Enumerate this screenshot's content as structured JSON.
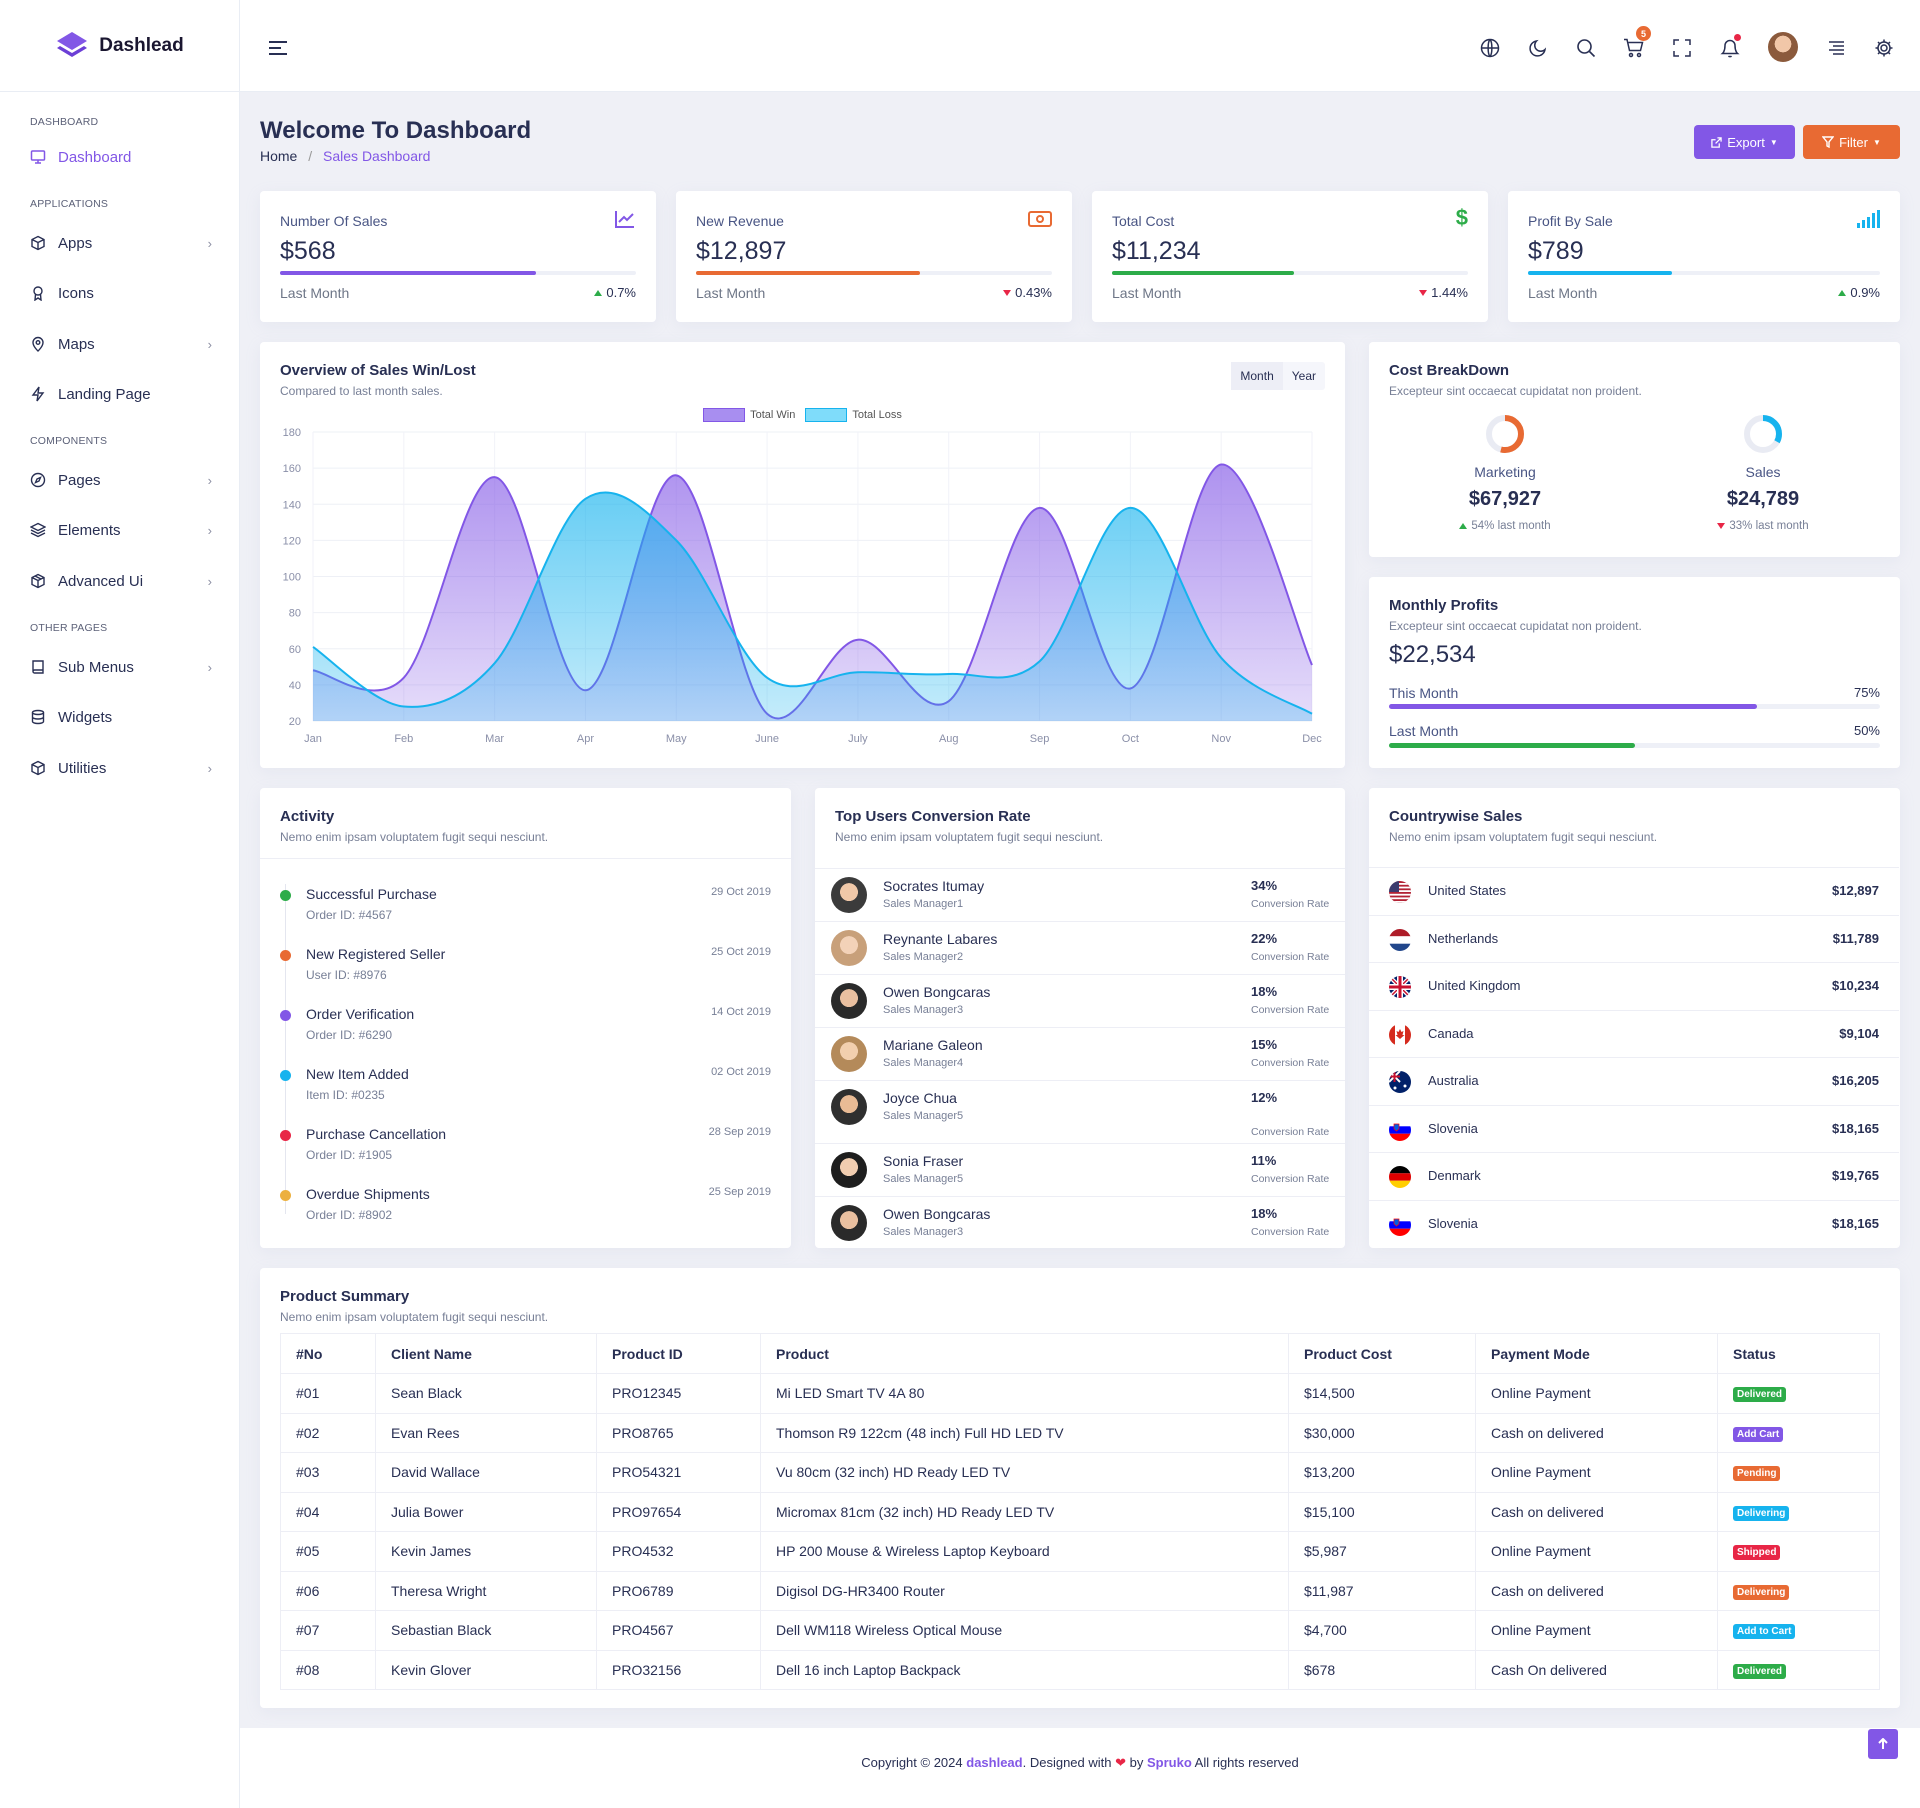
{
  "app": {
    "name": "Dashlead"
  },
  "header": {
    "cart_count": "5"
  },
  "sidebar": {
    "categories": [
      "DASHBOARD",
      "APPLICATIONS",
      "COMPONENTS",
      "OTHER PAGES"
    ],
    "items": [
      {
        "label": "Dashboard"
      },
      {
        "label": "Apps"
      },
      {
        "label": "Icons"
      },
      {
        "label": "Maps"
      },
      {
        "label": "Landing Page"
      },
      {
        "label": "Pages"
      },
      {
        "label": "Elements"
      },
      {
        "label": "Advanced Ui"
      },
      {
        "label": "Sub Menus"
      },
      {
        "label": "Widgets"
      },
      {
        "label": "Utilities"
      }
    ]
  },
  "page": {
    "title": "Welcome To Dashboard",
    "breadcrumb": [
      "Home",
      "Sales Dashboard"
    ],
    "export_label": "Export",
    "filter_label": "Filter"
  },
  "stats": [
    {
      "label": "Number Of Sales",
      "value": "$568",
      "foot": "Last Month",
      "pct": "0.7%",
      "dir": "up",
      "progress": 0.72,
      "color": "#8257e6"
    },
    {
      "label": "New Revenue",
      "value": "$12,897",
      "foot": "Last Month",
      "pct": "0.43%",
      "dir": "down",
      "progress": 0.63,
      "color": "#e86a33"
    },
    {
      "label": "Total Cost",
      "value": "$11,234",
      "foot": "Last Month",
      "pct": "1.44%",
      "dir": "down",
      "progress": 0.51,
      "color": "#2dac49"
    },
    {
      "label": "Profit By Sale",
      "value": "$789",
      "foot": "Last Month",
      "pct": "0.9%",
      "dir": "up",
      "progress": 0.41,
      "color": "#16b3ee"
    }
  ],
  "overview": {
    "title": "Overview of Sales Win/Lost",
    "subtitle": "Compared to last month sales.",
    "tab_month": "Month",
    "tab_year": "Year"
  },
  "chart_data": {
    "type": "area",
    "categories": [
      "Jan",
      "Feb",
      "Mar",
      "Apr",
      "May",
      "June",
      "July",
      "Aug",
      "Sep",
      "Oct",
      "Nov",
      "Dec"
    ],
    "series": [
      {
        "name": "Total Win",
        "values": [
          48,
          44,
          155,
          37,
          156,
          24,
          65,
          31,
          138,
          38,
          162,
          51
        ],
        "color": "#8257e6"
      },
      {
        "name": "Total Loss",
        "values": [
          61,
          28,
          52,
          143,
          120,
          44,
          47,
          46,
          53,
          138,
          55,
          24
        ],
        "color": "#16b3ee"
      }
    ],
    "ylim": [
      20,
      180
    ],
    "yticks": [
      "20",
      "40",
      "60",
      "80",
      "100",
      "120",
      "140",
      "160",
      "180"
    ],
    "grid": true,
    "legend": "top-center"
  },
  "cost_breakdown": {
    "title": "Cost BreakDown",
    "subtitle": "Excepteur sint occaecat cupidatat non proident.",
    "items": [
      {
        "label": "Marketing",
        "value": "$67,927",
        "change": "54% last month",
        "dir": "up",
        "ratio": 0.54,
        "color": "#e86a33"
      },
      {
        "label": "Sales",
        "value": "$24,789",
        "change": "33% last month",
        "dir": "down",
        "ratio": 0.33,
        "color": "#16b3ee"
      }
    ]
  },
  "monthly_profits": {
    "title": "Monthly Profits",
    "subtitle": "Excepteur sint occaecat cupidatat non proident.",
    "value": "$22,534",
    "rows": [
      {
        "label": "This Month",
        "pct": "75%",
        "progress": 0.75,
        "color": "#8257e6"
      },
      {
        "label": "Last Month",
        "pct": "50%",
        "progress": 0.5,
        "color": "#2dac49"
      }
    ]
  },
  "activity": {
    "title": "Activity",
    "subtitle": "Nemo enim ipsam voluptatem fugit sequi nesciunt.",
    "items": [
      {
        "title": "Successful Purchase",
        "sub": "Order ID: #4567",
        "date": "29 Oct 2019",
        "color": "#2dac49"
      },
      {
        "title": "New Registered Seller",
        "sub": "User ID: #8976",
        "date": "25 Oct 2019",
        "color": "#e86a33"
      },
      {
        "title": "Order Verification",
        "sub": "Order ID: #6290",
        "date": "14 Oct 2019",
        "color": "#8257e6"
      },
      {
        "title": "New Item Added",
        "sub": "Item ID: #0235",
        "date": "02 Oct 2019",
        "color": "#16b3ee"
      },
      {
        "title": "Purchase Cancellation",
        "sub": "Order ID: #1905",
        "date": "28 Sep 2019",
        "color": "#e82646"
      },
      {
        "title": "Overdue Shipments",
        "sub": "Order ID: #8902",
        "date": "25 Sep 2019",
        "color": "#ecb03f"
      }
    ]
  },
  "top_users": {
    "title": "Top Users Conversion Rate",
    "subtitle": "Nemo enim ipsam voluptatem fugit sequi nesciunt.",
    "rate_label": "Conversion Rate",
    "users": [
      {
        "name": "Socrates Itumay",
        "role": "Sales Manager1",
        "pct": "34%"
      },
      {
        "name": "Reynante Labares",
        "role": "Sales Manager2",
        "pct": "22%"
      },
      {
        "name": "Owen Bongcaras",
        "role": "Sales Manager3",
        "pct": "18%"
      },
      {
        "name": "Mariane Galeon",
        "role": "Sales Manager4",
        "pct": "15%"
      },
      {
        "name": "Joyce Chua",
        "role": "Sales Manager5",
        "pct": "12%"
      },
      {
        "name": "Sonia Fraser",
        "role": "Sales Manager5",
        "pct": "11%"
      },
      {
        "name": "Owen Bongcaras",
        "role": "Sales Manager3",
        "pct": "18%"
      }
    ]
  },
  "countrywise": {
    "title": "Countrywise Sales",
    "subtitle": "Nemo enim ipsam voluptatem fugit sequi nesciunt.",
    "rows": [
      {
        "country": "United States",
        "value": "$12,897",
        "flag": "us-flag-icon"
      },
      {
        "country": "Netherlands",
        "value": "$11,789",
        "flag": "nl-flag-icon"
      },
      {
        "country": "United Kingdom",
        "value": "$10,234",
        "flag": "uk-flag-icon"
      },
      {
        "country": "Canada",
        "value": "$9,104",
        "flag": "ca-flag-icon"
      },
      {
        "country": "Australia",
        "value": "$16,205",
        "flag": "au-flag-icon"
      },
      {
        "country": "Slovenia",
        "value": "$18,165",
        "flag": "si-flag-icon"
      },
      {
        "country": "Denmark",
        "value": "$19,765",
        "flag": "de-flag-icon"
      },
      {
        "country": "Slovenia",
        "value": "$18,165",
        "flag": "si-flag-icon"
      }
    ]
  },
  "product_summary": {
    "title": "Product Summary",
    "subtitle": "Nemo enim ipsam voluptatem fugit sequi nesciunt.",
    "headers": [
      "#No",
      "Client Name",
      "Product ID",
      "Product",
      "Product Cost",
      "Payment Mode",
      "Status"
    ],
    "rows": [
      {
        "no": "#01",
        "client": "Sean Black",
        "pid": "PRO12345",
        "product": "Mi LED Smart TV 4A 80",
        "cost": "$14,500",
        "mode": "Online Payment",
        "status": "Delivered",
        "color": "#2dac49"
      },
      {
        "no": "#02",
        "client": "Evan Rees",
        "pid": "PRO8765",
        "product": "Thomson R9 122cm (48 inch) Full HD LED TV",
        "cost": "$30,000",
        "mode": "Cash on delivered",
        "status": "Add Cart",
        "color": "#8257e6"
      },
      {
        "no": "#03",
        "client": "David Wallace",
        "pid": "PRO54321",
        "product": "Vu 80cm (32 inch) HD Ready LED TV",
        "cost": "$13,200",
        "mode": "Online Payment",
        "status": "Pending",
        "color": "#e86a33"
      },
      {
        "no": "#04",
        "client": "Julia Bower",
        "pid": "PRO97654",
        "product": "Micromax 81cm (32 inch) HD Ready LED TV",
        "cost": "$15,100",
        "mode": "Cash on delivered",
        "status": "Delivering",
        "color": "#16b3ee"
      },
      {
        "no": "#05",
        "client": "Kevin James",
        "pid": "PRO4532",
        "product": "HP 200 Mouse & Wireless Laptop Keyboard",
        "cost": "$5,987",
        "mode": "Online Payment",
        "status": "Shipped",
        "color": "#e82646"
      },
      {
        "no": "#06",
        "client": "Theresa Wright",
        "pid": "PRO6789",
        "product": "Digisol DG-HR3400 Router",
        "cost": "$11,987",
        "mode": "Cash on delivered",
        "status": "Delivering",
        "color": "#e86a33"
      },
      {
        "no": "#07",
        "client": "Sebastian Black",
        "pid": "PRO4567",
        "product": "Dell WM118 Wireless Optical Mouse",
        "cost": "$4,700",
        "mode": "Online Payment",
        "status": "Add to Cart",
        "color": "#16b3ee"
      },
      {
        "no": "#08",
        "client": "Kevin Glover",
        "pid": "PRO32156",
        "product": "Dell 16 inch Laptop Backpack",
        "cost": "$678",
        "mode": "Cash On delivered",
        "status": "Delivered",
        "color": "#2dac49"
      }
    ]
  },
  "footer": {
    "pre": "Copyright © 2024 ",
    "brand": "dashlead",
    "mid": ". Designed with ",
    "by": " by ",
    "author": "Spruko",
    "post": " All rights reserved"
  }
}
